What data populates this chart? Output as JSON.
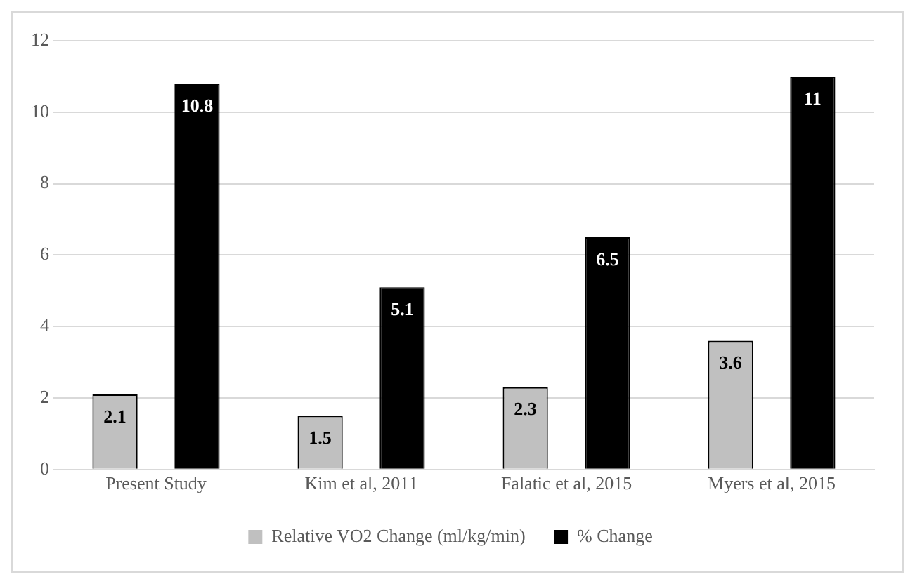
{
  "chart_data": {
    "type": "bar",
    "categories": [
      "Present Study",
      "Kim et al, 2011",
      "Falatic et al, 2015",
      "Myers et al, 2015"
    ],
    "series": [
      {
        "name": "Relative VO2 Change (ml/kg/min)",
        "color": "#c0c0c0",
        "values": [
          2.1,
          1.5,
          2.3,
          3.6
        ]
      },
      {
        "name": "% Change",
        "color": "#000000",
        "values": [
          10.8,
          5.1,
          6.5,
          11
        ]
      }
    ],
    "ylim": [
      0,
      12
    ],
    "yticks": [
      0,
      2,
      4,
      6,
      8,
      10,
      12
    ],
    "grid": "y",
    "legend": "bottom",
    "data_labels": true
  }
}
